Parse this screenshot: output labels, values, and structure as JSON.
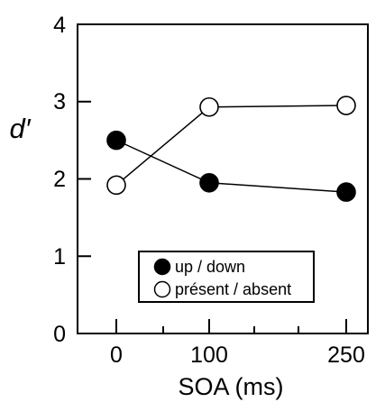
{
  "chart_data": {
    "type": "line",
    "xlabel": "SOA (ms)",
    "ylabel": "d′",
    "ylim": [
      0,
      4
    ],
    "yticks": [
      "0",
      "1",
      "2",
      "3",
      "4"
    ],
    "categories": [
      "0",
      "100",
      "250"
    ],
    "grid": false,
    "legend_position": "bottom-center",
    "series": [
      {
        "name": "up / down",
        "marker": "filled-circle",
        "color": "#000000",
        "values": [
          2.5,
          1.95,
          1.83
        ]
      },
      {
        "name": "présent / absent",
        "marker": "open-circle",
        "color": "#000000",
        "values": [
          1.92,
          2.93,
          2.95
        ]
      }
    ]
  }
}
